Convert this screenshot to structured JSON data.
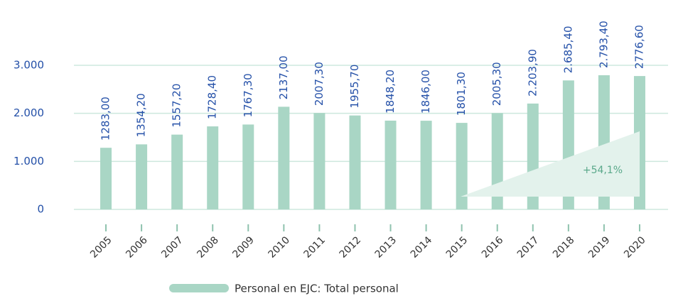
{
  "chart_data": {
    "type": "bar",
    "categories": [
      "2005",
      "2006",
      "2007",
      "2008",
      "2009",
      "2010",
      "2011",
      "2012",
      "2013",
      "2014",
      "2015",
      "2016",
      "2017",
      "2018",
      "2019",
      "2020"
    ],
    "series": [
      {
        "name": "Personal en EJC: Total personal",
        "color": "#a9d6c5",
        "values": [
          1283.0,
          1354.2,
          1557.2,
          1728.4,
          1767.3,
          2137.0,
          2007.3,
          1955.7,
          1848.2,
          1846.0,
          1801.3,
          2005.3,
          2203.9,
          2685.4,
          2793.4,
          2776.6
        ],
        "value_labels": [
          "1283,00",
          "1354,20",
          "1557,20",
          "1728,40",
          "1767,30",
          "2137,00",
          "2007,30",
          "1955,70",
          "1848,20",
          "1846,00",
          "1801,30",
          "2005,30",
          "2.203,90",
          "2.685,40",
          "2.793,40",
          "2776,60"
        ]
      }
    ],
    "ylim": [
      0,
      3000
    ],
    "yticks": [
      0,
      {
        "value": 1000,
        "label": "1.000"
      },
      {
        "value": 2000,
        "label": "2.000"
      },
      {
        "value": 3000,
        "label": "3.000"
      }
    ],
    "grid": true,
    "annotation": "+54,1%"
  }
}
